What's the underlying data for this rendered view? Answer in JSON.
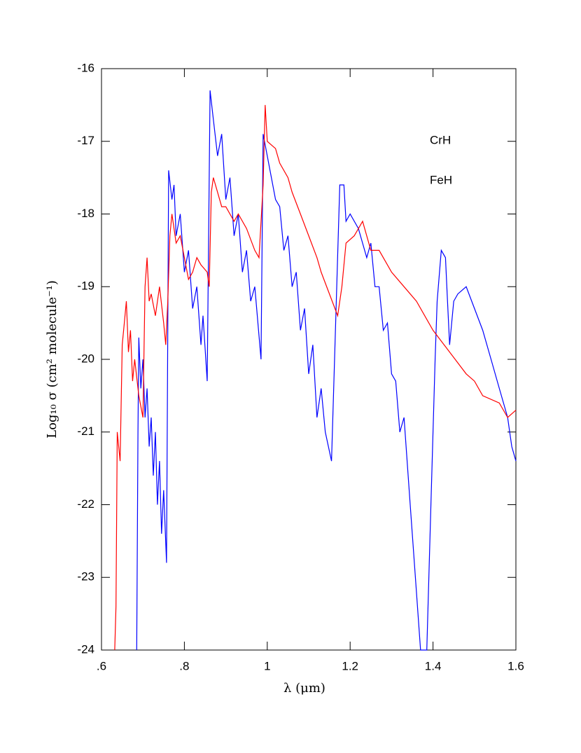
{
  "chart_data": {
    "type": "line",
    "xlabel": "λ (μm)",
    "ylabel": "Log₁₀ σ (cm² molecule⁻¹)",
    "xlim": [
      0.6,
      1.6
    ],
    "ylim": [
      -24,
      -16
    ],
    "xticks": [
      {
        "value": 0.6,
        "label": ".6"
      },
      {
        "value": 0.8,
        "label": ".8"
      },
      1,
      1.2,
      1.4,
      1.6
    ],
    "yticks": [
      -16,
      -17,
      -18,
      -19,
      -20,
      -21,
      -22,
      -23,
      -24
    ],
    "grid": false,
    "series": [
      {
        "name": "CrH",
        "color": "#0000ff",
        "x": [
          0.685,
          0.688,
          0.69,
          0.695,
          0.7,
          0.705,
          0.71,
          0.715,
          0.72,
          0.725,
          0.73,
          0.735,
          0.74,
          0.745,
          0.75,
          0.757,
          0.762,
          0.77,
          0.775,
          0.78,
          0.79,
          0.8,
          0.81,
          0.82,
          0.83,
          0.84,
          0.845,
          0.855,
          0.862,
          0.87,
          0.88,
          0.89,
          0.9,
          0.91,
          0.92,
          0.93,
          0.94,
          0.95,
          0.96,
          0.97,
          0.985,
          0.99,
          1.0,
          1.01,
          1.02,
          1.03,
          1.04,
          1.05,
          1.06,
          1.07,
          1.08,
          1.09,
          1.1,
          1.11,
          1.12,
          1.13,
          1.14,
          1.155,
          1.165,
          1.175,
          1.185,
          1.19,
          1.2,
          1.22,
          1.24,
          1.25,
          1.26,
          1.27,
          1.28,
          1.29,
          1.3,
          1.31,
          1.32,
          1.33,
          1.345,
          1.36,
          1.37,
          1.385,
          1.395,
          1.405,
          1.41,
          1.42,
          1.43,
          1.435,
          1.44,
          1.45,
          1.46,
          1.48,
          1.5,
          1.52,
          1.54,
          1.56,
          1.58,
          1.59,
          1.6
        ],
        "values": [
          -24,
          -21,
          -19.7,
          -20.4,
          -20.0,
          -20.8,
          -20.4,
          -21.2,
          -20.8,
          -21.6,
          -21.0,
          -22.0,
          -21.4,
          -22.4,
          -21.8,
          -22.8,
          -17.4,
          -17.8,
          -17.6,
          -18.3,
          -18.0,
          -18.8,
          -18.5,
          -19.3,
          -19.0,
          -19.8,
          -19.4,
          -20.3,
          -16.3,
          -16.7,
          -17.2,
          -16.9,
          -17.8,
          -17.5,
          -18.3,
          -18.0,
          -18.8,
          -18.5,
          -19.2,
          -19.0,
          -20.0,
          -16.9,
          -17.2,
          -17.5,
          -17.8,
          -17.9,
          -18.5,
          -18.3,
          -19.0,
          -18.8,
          -19.6,
          -19.3,
          -20.2,
          -19.8,
          -20.8,
          -20.4,
          -21.0,
          -21.4,
          -19.5,
          -17.6,
          -17.6,
          -18.1,
          -18.0,
          -18.2,
          -18.6,
          -18.4,
          -19.0,
          -19.0,
          -19.6,
          -19.5,
          -20.2,
          -20.3,
          -21.0,
          -20.8,
          -22.0,
          -23.2,
          -24,
          -24,
          -22.0,
          -20.0,
          -19.2,
          -18.5,
          -18.6,
          -19.2,
          -19.8,
          -19.2,
          -19.1,
          -19.0,
          -19.3,
          -19.6,
          -20.0,
          -20.4,
          -20.8,
          -21.2,
          -21.4
        ]
      },
      {
        "name": "FeH",
        "color": "#ff0000",
        "x": [
          0.632,
          0.635,
          0.638,
          0.645,
          0.65,
          0.655,
          0.66,
          0.665,
          0.67,
          0.675,
          0.68,
          0.69,
          0.7,
          0.705,
          0.71,
          0.715,
          0.72,
          0.73,
          0.74,
          0.75,
          0.755,
          0.76,
          0.765,
          0.77,
          0.78,
          0.79,
          0.8,
          0.81,
          0.82,
          0.83,
          0.84,
          0.855,
          0.86,
          0.865,
          0.87,
          0.88,
          0.89,
          0.9,
          0.92,
          0.93,
          0.95,
          0.97,
          0.98,
          0.99,
          0.995,
          1.0,
          1.02,
          1.03,
          1.05,
          1.06,
          1.08,
          1.1,
          1.12,
          1.13,
          1.15,
          1.17,
          1.18,
          1.19,
          1.21,
          1.23,
          1.25,
          1.27,
          1.3,
          1.33,
          1.36,
          1.4,
          1.44,
          1.48,
          1.5,
          1.52,
          1.56,
          1.58,
          1.6
        ],
        "values": [
          -24,
          -23.4,
          -21.0,
          -21.4,
          -19.8,
          -19.5,
          -19.2,
          -19.9,
          -19.6,
          -20.3,
          -20.0,
          -20.5,
          -20.8,
          -19.0,
          -18.6,
          -19.2,
          -19.1,
          -19.4,
          -19.0,
          -19.5,
          -19.8,
          -19.2,
          -18.3,
          -18.0,
          -18.4,
          -18.3,
          -18.6,
          -18.9,
          -18.8,
          -18.6,
          -18.7,
          -18.8,
          -19.0,
          -17.7,
          -17.5,
          -17.7,
          -17.9,
          -17.9,
          -18.1,
          -18.0,
          -18.2,
          -18.5,
          -18.6,
          -17.6,
          -16.5,
          -17.0,
          -17.1,
          -17.3,
          -17.5,
          -17.7,
          -18.0,
          -18.3,
          -18.6,
          -18.8,
          -19.1,
          -19.4,
          -19.0,
          -18.4,
          -18.3,
          -18.1,
          -18.5,
          -18.5,
          -18.8,
          -19.0,
          -19.2,
          -19.6,
          -19.9,
          -20.2,
          -20.3,
          -20.5,
          -20.6,
          -20.8,
          -20.7
        ]
      }
    ]
  }
}
